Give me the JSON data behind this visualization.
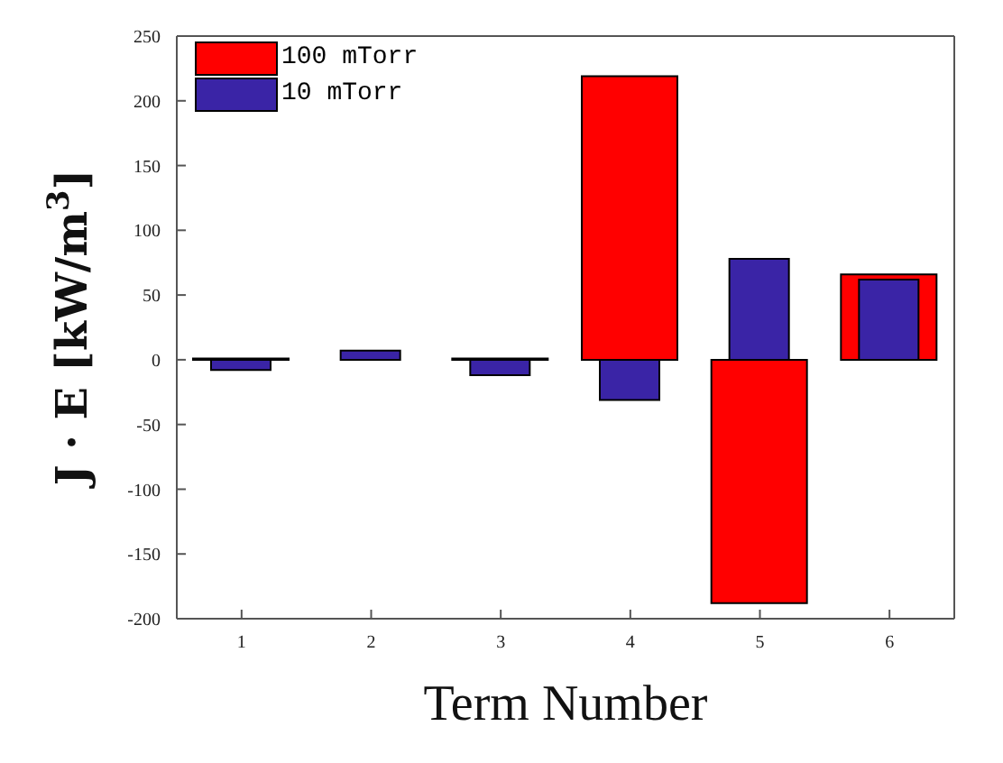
{
  "chart_data": {
    "type": "bar",
    "xlabel": "Term Number",
    "ylabel": "J · E [kW/m$^{3}$]",
    "categories": [
      "1",
      "2",
      "3",
      "4",
      "5",
      "6"
    ],
    "series": [
      {
        "name": "100 mTorr",
        "color": "#ff0000",
        "values": [
          1,
          null,
          1,
          219,
          -188,
          66
        ]
      },
      {
        "name": "10 mTorr",
        "color": "#3a24a6",
        "values": [
          -8,
          7,
          -12,
          -31,
          78,
          62
        ]
      }
    ],
    "ylim": [
      -200,
      250
    ],
    "yticks": [
      -200,
      -150,
      -100,
      -50,
      0,
      50,
      100,
      150,
      200,
      250
    ],
    "grid": false,
    "legend": "top left"
  }
}
